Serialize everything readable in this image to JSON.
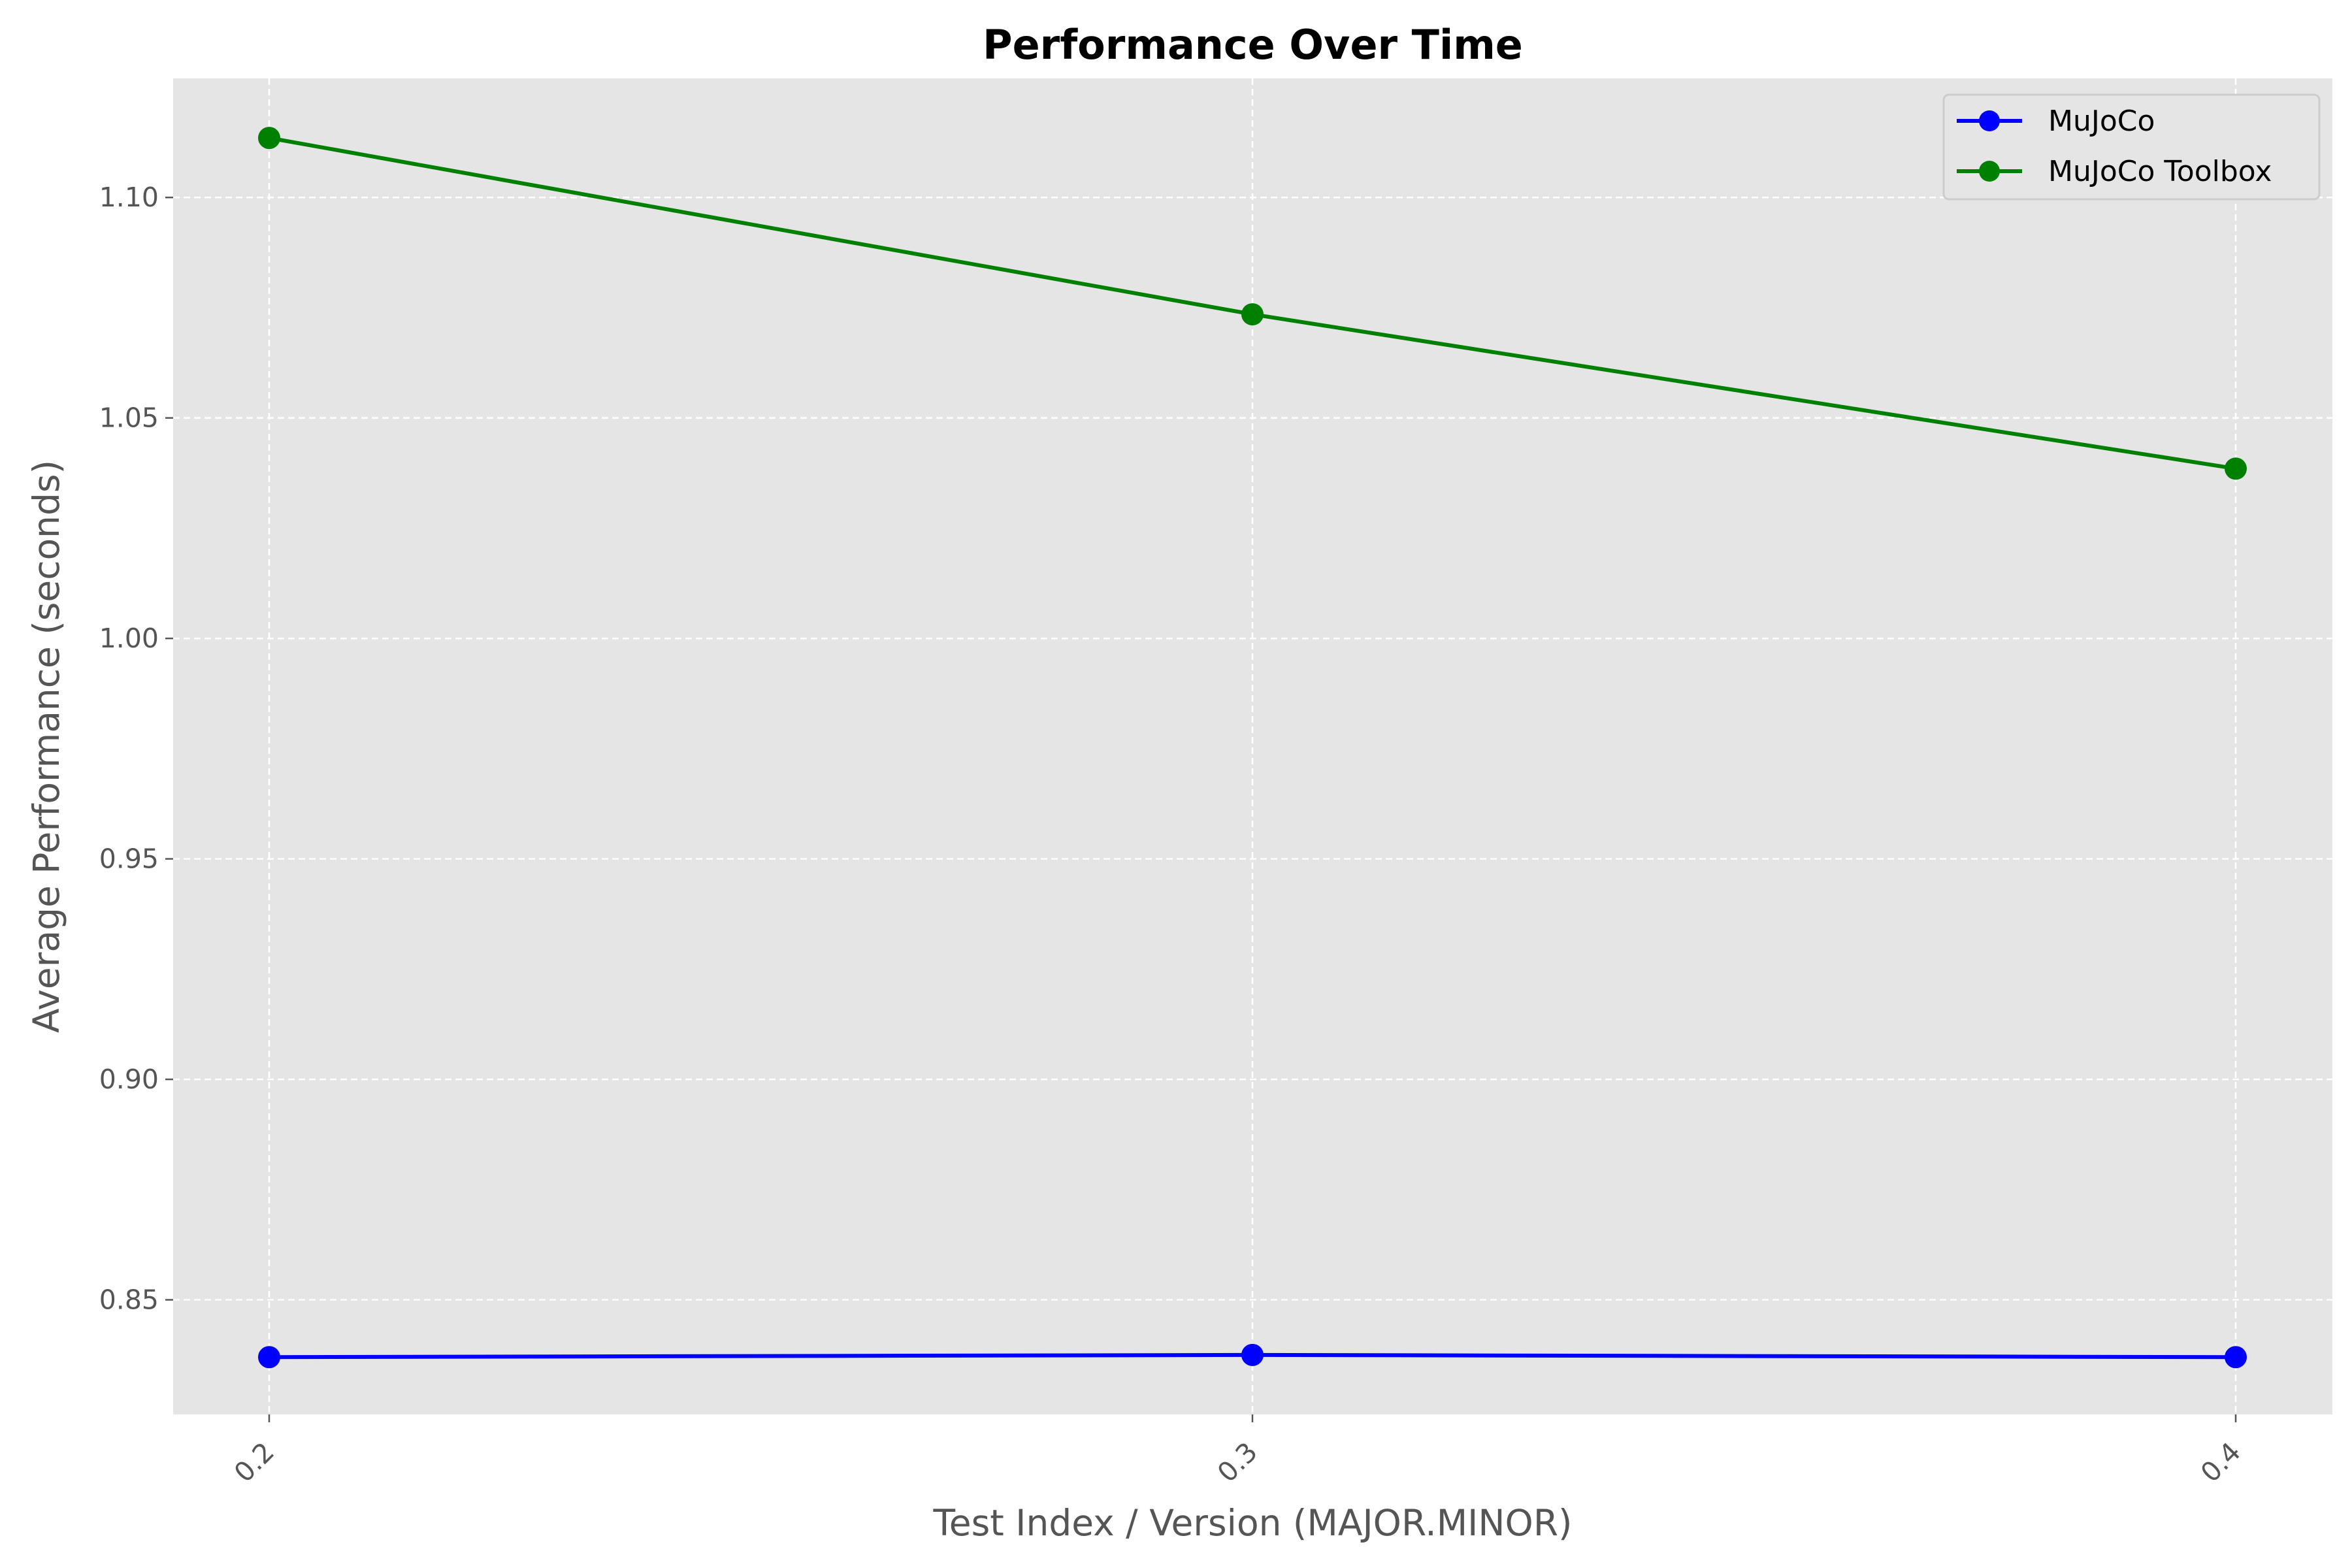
{
  "chart_data": {
    "type": "line",
    "title": "Performance Over Time",
    "xlabel": "Test Index / Version (MAJOR.MINOR)",
    "ylabel": "Average Performance (seconds)",
    "categories": [
      "0.2",
      "0.3",
      "0.4"
    ],
    "ylim": [
      0.824,
      1.127
    ],
    "yticks": [
      0.85,
      0.9,
      0.95,
      1.0,
      1.05,
      1.1
    ],
    "ytick_labels": [
      "0.85",
      "0.90",
      "0.95",
      "1.00",
      "1.05",
      "1.10"
    ],
    "grid": true,
    "legend_position": "top-right",
    "series": [
      {
        "name": "MuJoCo",
        "color": "#0000ff",
        "values": [
          0.837,
          0.8375,
          0.837
        ]
      },
      {
        "name": "MuJoCo Toolbox",
        "color": "#008000",
        "values": [
          1.1135,
          1.0735,
          1.0385
        ]
      }
    ]
  }
}
